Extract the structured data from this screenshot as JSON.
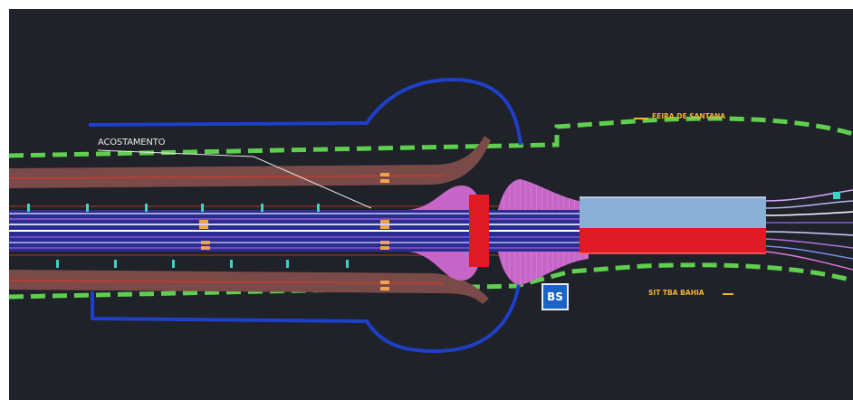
{
  "drawing": {
    "labels": {
      "acostamento": "ACOSTAMENTO",
      "feira": "FEIRA DE SANTANA",
      "bahia": "SIT TBA BAHIA"
    },
    "sign_text": "BS"
  },
  "colors": {
    "background": "#1f2228",
    "boundary_dash": "#5fcf4f",
    "road_fill": "#7a4a48",
    "loop_outline": "#1e3fc8",
    "bridge_light": "#8ab0d8",
    "bridge_red": "#e01a24",
    "magenta_shape": "#c766c9",
    "label_yellow": "#f2b233"
  }
}
